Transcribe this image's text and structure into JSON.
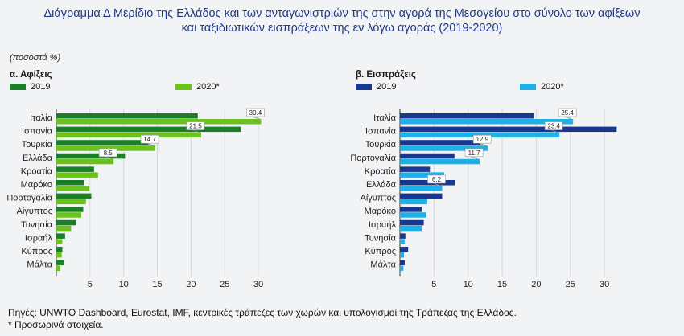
{
  "title_line1": "Διάγραμμα Δ Μερίδιο της Ελλάδος και των ανταγωνιστριών της στην αγορά της Μεσογείου στο σύνολο των αφίξεων",
  "title_line2": "και ταξιδιωτικών εισπράξεων της εν λόγω αγοράς (2019-2020)",
  "unit_label": "(ποσοστά %)",
  "footer_line1": "Πηγές: UNWTO Dashboard, Eurostat, IMF, κεντρικές τράπεζες των χωρών και υπολογισμοί της Τράπεζας της Ελλάδος.",
  "footer_line2": "* Προσωρινά στοιχεία.",
  "chart_data": [
    {
      "type": "bar",
      "orientation": "horizontal",
      "title": "α. Αφίξεις",
      "categories": [
        "Ιταλία",
        "Ισπανία",
        "Τουρκία",
        "Ελλάδα",
        "Κροατία",
        "Μαρόκο",
        "Πορτογαλία",
        "Αίγυπτος",
        "Τυνησία",
        "Ισραήλ",
        "Κύπρος",
        "Μάλτα"
      ],
      "series": [
        {
          "name": "2019",
          "color": "#1b7f2a",
          "values": [
            21.0,
            27.4,
            13.7,
            10.2,
            5.6,
            4.1,
            5.2,
            4.0,
            2.9,
            1.3,
            0.9,
            1.2
          ]
        },
        {
          "name": "2020*",
          "color": "#6cc11e",
          "values": [
            30.4,
            21.5,
            14.7,
            8.5,
            6.2,
            4.9,
            4.4,
            3.7,
            2.2,
            0.9,
            0.8,
            0.6
          ]
        }
      ],
      "data_labels": {
        "2020*": {
          "Ιταλία": "30.4",
          "Ισπανία": "21.5",
          "Τουρκία": "14.7",
          "Ελλάδα": "8.5"
        }
      },
      "xlim": [
        0,
        32
      ],
      "xticks": [
        "5",
        "10",
        "15",
        "20",
        "25",
        "30"
      ],
      "xtick_values": [
        5,
        10,
        15,
        20,
        25,
        30
      ],
      "grid": true,
      "legend": "top-left"
    },
    {
      "type": "bar",
      "orientation": "horizontal",
      "title": "β. Εισπράξεις",
      "categories": [
        "Ιταλία",
        "Ισπανία",
        "Τουρκία",
        "Πορτογαλία",
        "Κροατία",
        "Ελλάδα",
        "Αίγυπτος",
        "Μαρόκο",
        "Ισραήλ",
        "Τυνησία",
        "Κύπρος",
        "Μάλτα"
      ],
      "series": [
        {
          "name": "2019",
          "color": "#1a3790",
          "values": [
            19.7,
            31.8,
            11.8,
            8.0,
            4.4,
            8.1,
            6.2,
            3.2,
            3.5,
            0.8,
            1.2,
            0.7
          ]
        },
        {
          "name": "2020*",
          "color": "#1fb0e6",
          "values": [
            25.4,
            23.4,
            12.9,
            11.7,
            6.5,
            6.2,
            4.0,
            3.9,
            3.2,
            0.7,
            0.6,
            0.5
          ]
        }
      ],
      "data_labels": {
        "2020*": {
          "Ιταλία": "25.4",
          "Ισπανία": "23.4",
          "Τουρκία": "12.9",
          "Πορτογαλία": "11.7",
          "Ελλάδα": "6.2"
        }
      },
      "xlim": [
        0,
        33
      ],
      "xticks": [
        "5",
        "10",
        "15",
        "20",
        "25",
        "30"
      ],
      "xtick_values": [
        5,
        10,
        15,
        20,
        25,
        30
      ],
      "grid": true,
      "legend": "top-left"
    }
  ]
}
